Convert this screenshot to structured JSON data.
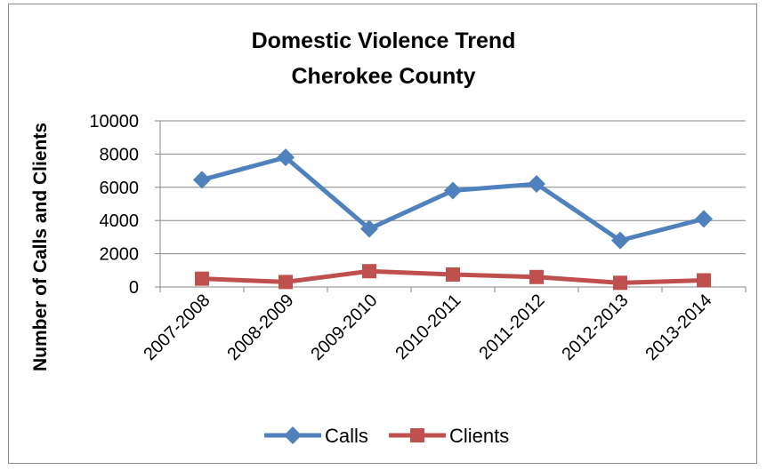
{
  "chart_data": {
    "type": "line",
    "title": [
      "Domestic Violence Trend",
      "Cherokee County"
    ],
    "ylabel": "Number of Calls and Clients",
    "xlabel": "",
    "categories": [
      "2007-2008",
      "2008-2009",
      "2009-2010",
      "2010-2011",
      "2011-2012",
      "2012-2013",
      "2013-2014"
    ],
    "ylim": [
      0,
      10000
    ],
    "yticks": [
      0,
      2000,
      4000,
      6000,
      8000,
      10000
    ],
    "grid": true,
    "legend_position": "bottom",
    "series": [
      {
        "name": "Calls",
        "values": [
          6450,
          7800,
          3500,
          5800,
          6200,
          2800,
          4100
        ],
        "color": "#4f81bd",
        "marker": "diamond"
      },
      {
        "name": "Clients",
        "values": [
          500,
          300,
          950,
          750,
          600,
          250,
          400
        ],
        "color": "#c0504d",
        "marker": "square"
      }
    ]
  }
}
